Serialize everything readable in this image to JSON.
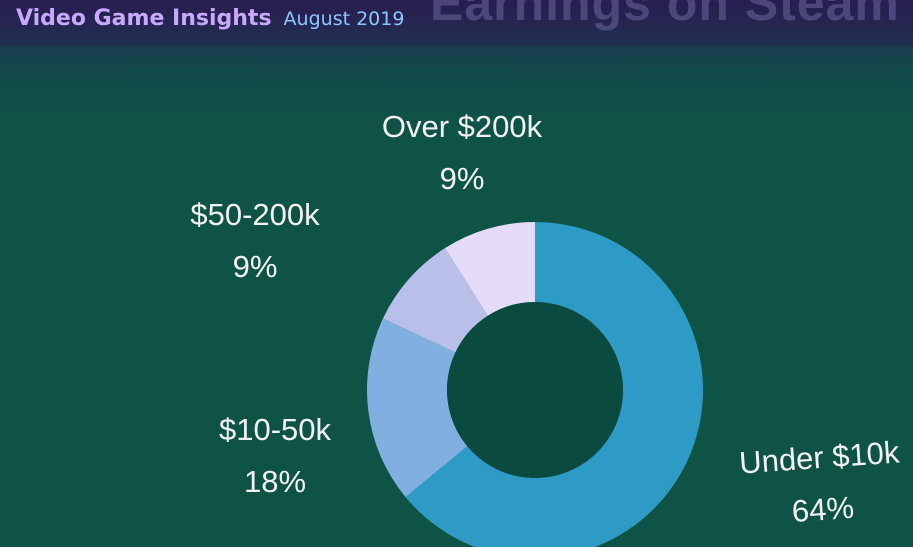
{
  "header": {
    "brand": "Video Game Insights",
    "date": "August 2019",
    "faded_title": "Earnings on Steam"
  },
  "colors": {
    "background": "#0f5347",
    "brand_text": "#c9a8ff",
    "date_text": "#8ec6ff",
    "label_text": "#f2f2f2",
    "hole": "#0b4a3f"
  },
  "chart_data": {
    "type": "pie",
    "donut": true,
    "title": "",
    "slices": [
      {
        "label": "Under $10k",
        "value": 64,
        "value_label": "64%",
        "color": "#2e9bc6"
      },
      {
        "label": "$10-50k",
        "value": 18,
        "value_label": "18%",
        "color": "#7fb0e0"
      },
      {
        "label": "$50-200k",
        "value": 9,
        "value_label": "9%",
        "color": "#b8c0ea"
      },
      {
        "label": "Over $200k",
        "value": 9,
        "value_label": "9%",
        "color": "#e4dcf6"
      }
    ],
    "start_angle_deg": 0,
    "direction": "clockwise",
    "legend": "none"
  }
}
